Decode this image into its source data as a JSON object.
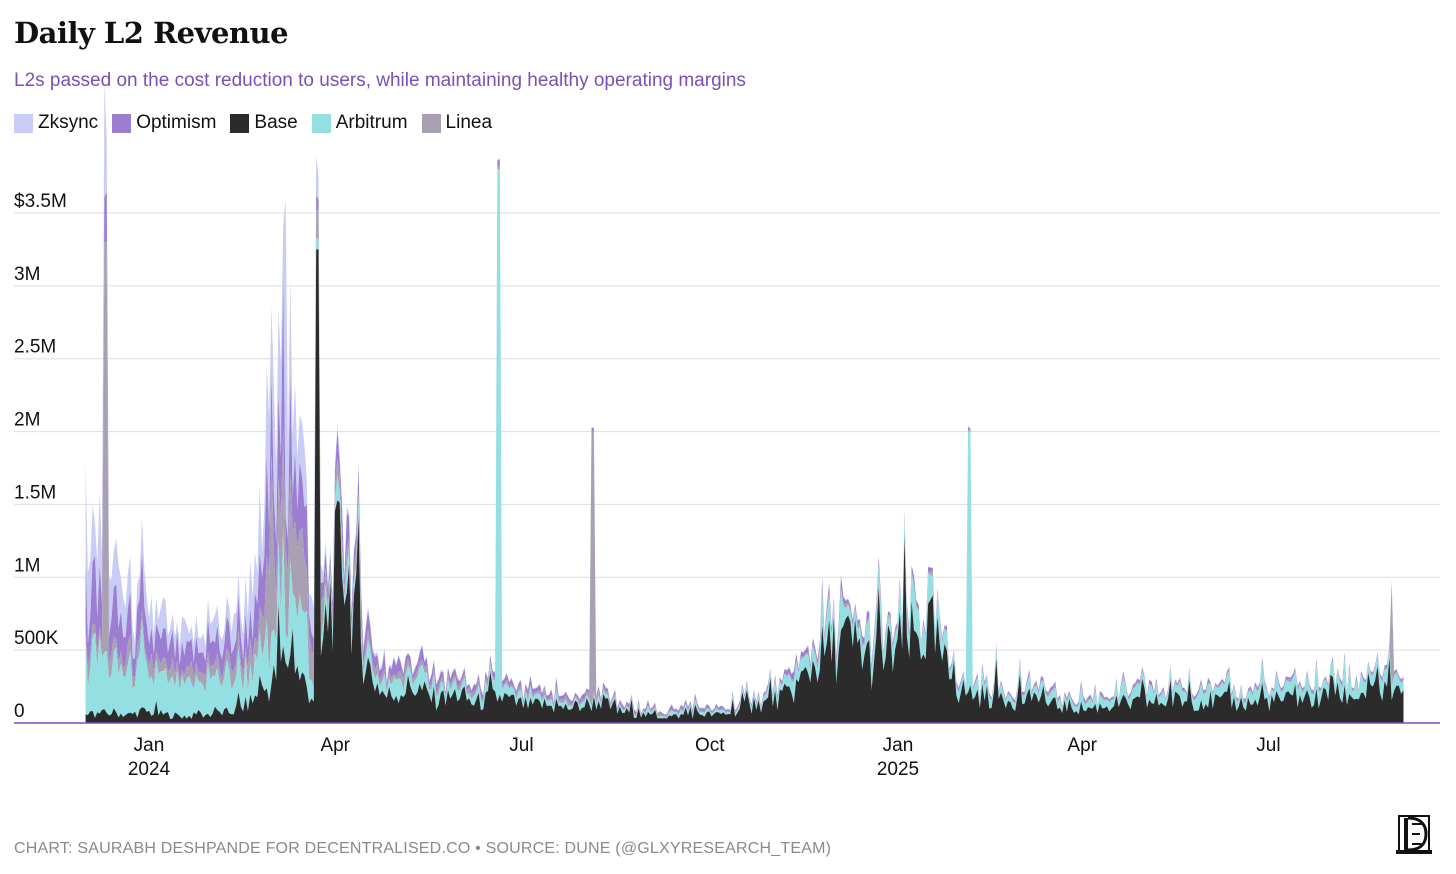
{
  "title": "Daily L2 Revenue",
  "subtitle": "L2s passed on the cost reduction to users, while maintaining healthy operating margins",
  "footer": "CHART: SAURABH DESHPANDE FOR DECENTRALISED.CO • SOURCE: DUNE (@GLXYRESEARCH_TEAM)",
  "logo_icon": "decentralised-co-logo",
  "colors": {
    "Zksync": "#c9cdf5",
    "Optimism": "#9b7dd1",
    "Base": "#2b2b2b",
    "Arbitrum": "#93dfe1",
    "Linea": "#a9a1b3",
    "subtitle": "#7b4fb8",
    "baseline": "#7b4fb8"
  },
  "chart_data": {
    "type": "area",
    "stacked": true,
    "title": "Daily L2 Revenue",
    "ylabel": "",
    "xlabel": "",
    "ylim": [
      0,
      3500000
    ],
    "yticks": [
      {
        "value": 0,
        "label": "0"
      },
      {
        "value": 500000,
        "label": "500K"
      },
      {
        "value": 1000000,
        "label": "1M"
      },
      {
        "value": 1500000,
        "label": "1.5M"
      },
      {
        "value": 2000000,
        "label": "2M"
      },
      {
        "value": 2500000,
        "label": "2.5M"
      },
      {
        "value": 3000000,
        "label": "3M"
      },
      {
        "value": 3500000,
        "label": "$3.5M"
      }
    ],
    "xticks": [
      {
        "date": "2024-01-01",
        "label": "Jan",
        "sub": "2024"
      },
      {
        "date": "2024-04-01",
        "label": "Apr",
        "sub": ""
      },
      {
        "date": "2024-07-01",
        "label": "Jul",
        "sub": ""
      },
      {
        "date": "2024-10-01",
        "label": "Oct",
        "sub": ""
      },
      {
        "date": "2025-01-01",
        "label": "Jan",
        "sub": "2025"
      },
      {
        "date": "2025-04-01",
        "label": "Apr",
        "sub": ""
      },
      {
        "date": "2025-07-01",
        "label": "Jul",
        "sub": ""
      }
    ],
    "legend": [
      "Zksync",
      "Optimism",
      "Base",
      "Arbitrum",
      "Linea"
    ],
    "stack_order": [
      "Base",
      "Arbitrum",
      "Linea",
      "Optimism",
      "Zksync"
    ],
    "legend_position": "top-left",
    "grid": true,
    "x_dates": [
      "2023-12-01",
      "2023-12-08",
      "2023-12-15",
      "2023-12-22",
      "2023-12-29",
      "2024-01-05",
      "2024-01-12",
      "2024-01-19",
      "2024-01-26",
      "2024-02-02",
      "2024-02-09",
      "2024-02-16",
      "2024-02-23",
      "2024-03-01",
      "2024-03-08",
      "2024-03-15",
      "2024-03-22",
      "2024-03-29",
      "2024-04-05",
      "2024-04-12",
      "2024-04-19",
      "2024-04-26",
      "2024-05-03",
      "2024-05-10",
      "2024-05-17",
      "2024-05-24",
      "2024-05-31",
      "2024-06-07",
      "2024-06-14",
      "2024-06-21",
      "2024-06-28",
      "2024-07-05",
      "2024-07-12",
      "2024-07-19",
      "2024-07-26",
      "2024-08-02",
      "2024-08-09",
      "2024-08-16",
      "2024-08-23",
      "2024-08-30",
      "2024-09-06",
      "2024-09-13",
      "2024-09-20",
      "2024-09-27",
      "2024-10-04",
      "2024-10-11",
      "2024-10-18",
      "2024-10-25",
      "2024-11-01",
      "2024-11-08",
      "2024-11-15",
      "2024-11-22",
      "2024-11-29",
      "2024-12-06",
      "2024-12-13",
      "2024-12-20",
      "2024-12-27",
      "2025-01-03",
      "2025-01-10",
      "2025-01-17",
      "2025-01-24",
      "2025-01-31",
      "2025-02-07",
      "2025-02-14",
      "2025-02-21",
      "2025-02-28",
      "2025-03-07",
      "2025-03-14",
      "2025-03-21",
      "2025-03-28",
      "2025-04-04",
      "2025-04-11",
      "2025-04-18",
      "2025-04-25",
      "2025-05-02",
      "2025-05-09",
      "2025-05-16",
      "2025-05-23",
      "2025-05-30",
      "2025-06-06",
      "2025-06-13",
      "2025-06-20",
      "2025-06-27",
      "2025-07-04",
      "2025-07-11",
      "2025-07-18",
      "2025-07-25",
      "2025-08-01",
      "2025-08-08",
      "2025-08-15",
      "2025-08-22",
      "2025-08-29",
      "2025-09-05"
    ],
    "series": [
      {
        "name": "Base",
        "values": [
          60000,
          70000,
          80000,
          60000,
          90000,
          70000,
          60000,
          50000,
          60000,
          70000,
          80000,
          120000,
          200000,
          300000,
          520000,
          350000,
          180000,
          900000,
          1350000,
          700000,
          350000,
          200000,
          250000,
          280000,
          200000,
          160000,
          230000,
          150000,
          170000,
          200000,
          150000,
          130000,
          140000,
          110000,
          120000,
          140000,
          170000,
          90000,
          80000,
          60000,
          50000,
          50000,
          60000,
          70000,
          60000,
          80000,
          110000,
          140000,
          170000,
          210000,
          320000,
          480000,
          560000,
          620000,
          560000,
          460000,
          520000,
          600000,
          640000,
          700000,
          420000,
          250000,
          220000,
          200000,
          210000,
          180000,
          160000,
          140000,
          130000,
          120000,
          110000,
          130000,
          150000,
          140000,
          150000,
          160000,
          170000,
          170000,
          180000,
          160000,
          160000,
          150000,
          160000,
          170000,
          170000,
          190000,
          180000,
          210000,
          210000,
          220000,
          220000,
          230000,
          170000
        ]
      },
      {
        "name": "Arbitrum",
        "values": [
          400000,
          430000,
          350000,
          330000,
          300000,
          260000,
          240000,
          220000,
          230000,
          250000,
          270000,
          240000,
          230000,
          280000,
          420000,
          450000,
          120000,
          100000,
          90000,
          110000,
          90000,
          70000,
          90000,
          110000,
          80000,
          60000,
          70000,
          50000,
          60000,
          70000,
          50000,
          40000,
          40000,
          30000,
          30000,
          30000,
          30000,
          20000,
          20000,
          20000,
          20000,
          20000,
          20000,
          20000,
          20000,
          20000,
          30000,
          40000,
          50000,
          60000,
          90000,
          120000,
          150000,
          160000,
          130000,
          110000,
          120000,
          160000,
          180000,
          160000,
          90000,
          60000,
          70000,
          60000,
          60000,
          50000,
          50000,
          50000,
          50000,
          50000,
          50000,
          60000,
          70000,
          70000,
          70000,
          70000,
          80000,
          80000,
          90000,
          90000,
          80000,
          70000,
          70000,
          80000,
          90000,
          90000,
          90000,
          90000,
          100000,
          100000,
          100000,
          90000,
          80000
        ]
      },
      {
        "name": "Linea",
        "values": [
          100000,
          100000,
          90000,
          90000,
          80000,
          80000,
          80000,
          70000,
          80000,
          90000,
          100000,
          110000,
          150000,
          600000,
          700000,
          500000,
          300000,
          100000,
          90000,
          80000,
          60000,
          40000,
          40000,
          40000,
          30000,
          30000,
          30000,
          30000,
          30000,
          20000,
          20000,
          20000,
          20000,
          20000,
          20000,
          20000,
          20000,
          10000,
          10000,
          10000,
          10000,
          10000,
          10000,
          10000,
          10000,
          10000,
          10000,
          10000,
          10000,
          10000,
          10000,
          20000,
          20000,
          20000,
          20000,
          20000,
          20000,
          20000,
          20000,
          20000,
          10000,
          10000,
          10000,
          10000,
          10000,
          10000,
          10000,
          10000,
          10000,
          10000,
          10000,
          10000,
          10000,
          10000,
          10000,
          10000,
          10000,
          10000,
          10000,
          10000,
          10000,
          10000,
          10000,
          10000,
          10000,
          10000,
          10000,
          10000,
          10000,
          10000,
          10000,
          10000,
          10000
        ]
      },
      {
        "name": "Optimism",
        "values": [
          350000,
          330000,
          300000,
          230000,
          200000,
          170000,
          160000,
          140000,
          150000,
          160000,
          180000,
          200000,
          250000,
          450000,
          480000,
          350000,
          150000,
          80000,
          120000,
          150000,
          90000,
          60000,
          50000,
          50000,
          50000,
          40000,
          40000,
          35000,
          35000,
          35000,
          30000,
          30000,
          30000,
          25000,
          25000,
          25000,
          25000,
          20000,
          20000,
          15000,
          15000,
          15000,
          15000,
          15000,
          15000,
          15000,
          15000,
          15000,
          20000,
          25000,
          30000,
          40000,
          45000,
          45000,
          40000,
          35000,
          30000,
          30000,
          30000,
          25000,
          15000,
          15000,
          15000,
          15000,
          15000,
          15000,
          15000,
          15000,
          15000,
          15000,
          15000,
          15000,
          15000,
          15000,
          15000,
          15000,
          15000,
          15000,
          15000,
          15000,
          15000,
          15000,
          15000,
          15000,
          15000,
          15000,
          15000,
          15000,
          15000,
          15000,
          15000,
          15000,
          15000
        ]
      },
      {
        "name": "Zksync",
        "values": [
          450000,
          420000,
          330000,
          230000,
          210000,
          170000,
          150000,
          120000,
          140000,
          160000,
          180000,
          220000,
          300000,
          620000,
          580000,
          400000,
          150000,
          50000,
          40000,
          30000,
          25000,
          20000,
          15000,
          15000,
          12000,
          10000,
          10000,
          8000,
          8000,
          8000,
          6000,
          6000,
          6000,
          5000,
          5000,
          5000,
          5000,
          5000,
          5000,
          5000,
          5000,
          5000,
          5000,
          5000,
          5000,
          5000,
          5000,
          5000,
          5000,
          5000,
          5000,
          5000,
          5000,
          5000,
          5000,
          5000,
          5000,
          5000,
          5000,
          5000,
          5000,
          5000,
          5000,
          5000,
          5000,
          5000,
          5000,
          5000,
          5000,
          5000,
          5000,
          5000,
          5000,
          5000,
          5000,
          5000,
          5000,
          5000,
          5000,
          5000,
          5000,
          5000,
          5000,
          5000,
          5000,
          5000,
          5000,
          5000,
          5000,
          5000,
          5000,
          5000,
          5000
        ]
      }
    ],
    "spikes": [
      {
        "date": "2023-12-11",
        "series": "Linea",
        "value": 3300000
      },
      {
        "date": "2024-03-08",
        "series": "Zksync",
        "value": 3600000
      },
      {
        "date": "2024-03-23",
        "series": "Base",
        "value": 3250000
      },
      {
        "date": "2024-06-20",
        "series": "Arbitrum",
        "value": 3800000
      },
      {
        "date": "2024-08-05",
        "series": "Linea",
        "value": 2000000
      },
      {
        "date": "2025-02-05",
        "series": "Arbitrum",
        "value": 2000000
      },
      {
        "date": "2025-08-30",
        "series": "Linea",
        "value": 960000
      }
    ]
  }
}
